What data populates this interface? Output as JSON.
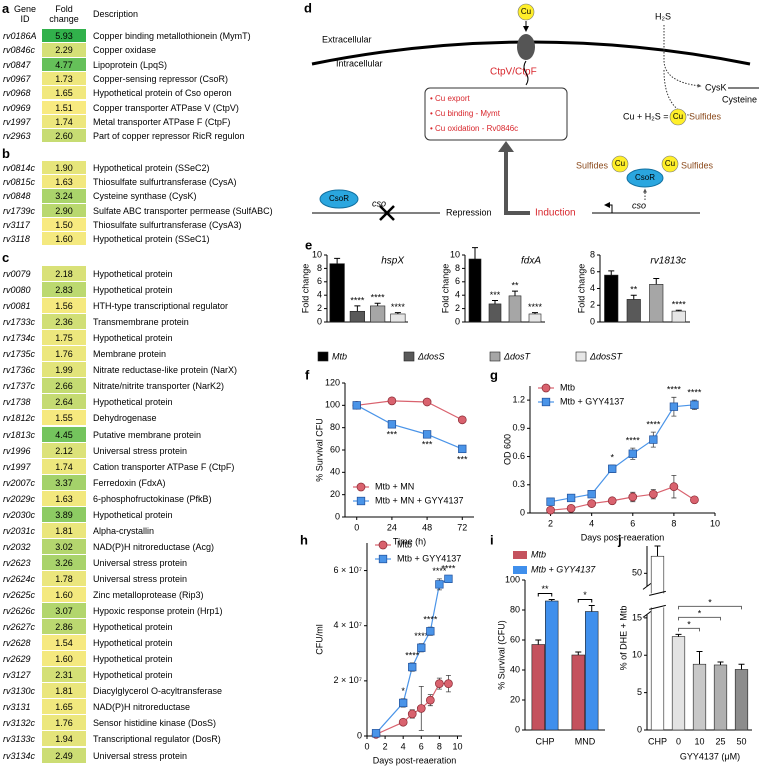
{
  "tables": [
    {
      "label": "a",
      "headers": [
        "Gene ID",
        "Fold change",
        "Description"
      ],
      "rows": [
        [
          "rv0186A",
          "5.93",
          "Copper binding metallothionein (MymT)"
        ],
        [
          "rv0846c",
          "2.29",
          "Copper oxidase"
        ],
        [
          "rv0847",
          "4.77",
          "Lipoprotein (LpqS)"
        ],
        [
          "rv0967",
          "1.73",
          "Copper-sensing repressor (CsoR)"
        ],
        [
          "rv0968",
          "1.65",
          "Hypothetical protein of Cso operon"
        ],
        [
          "rv0969",
          "1.51",
          "Copper transporter ATPase V (CtpV)"
        ],
        [
          "rv1997",
          "1.74",
          "Metal transporter ATPase F (CtpF)"
        ],
        [
          "rv2963",
          "2.60",
          "Part of copper repressor RicR regulon"
        ]
      ]
    },
    {
      "label": "b",
      "rows": [
        [
          "rv0814c",
          "1.90",
          "Hypothetical protein (SSeC2)"
        ],
        [
          "rv0815c",
          "1.63",
          "Thiosulfate sulfurtransferase (CysA)"
        ],
        [
          "rv0848",
          "3.24",
          "Cysteine synthase (CysK)"
        ],
        [
          "rv1739c",
          "2.90",
          "Sulfate ABC transporter permease (SulfABC)"
        ],
        [
          "rv3117",
          "1.50",
          "Thiosulfate sulfurtransferase (CysA3)"
        ],
        [
          "rv3118",
          "1.60",
          "Hypothetical protein (SSeC1)"
        ]
      ]
    },
    {
      "label": "c",
      "rows": [
        [
          "rv0079",
          "2.18",
          "Hypothetical protein"
        ],
        [
          "rv0080",
          "2.83",
          "Hypothetical protein"
        ],
        [
          "rv0081",
          "1.56",
          "HTH-type transcriptional regulator"
        ],
        [
          "rv1733c",
          "2.36",
          "Transmembrane protein"
        ],
        [
          "rv1734c",
          "1.75",
          "Hypothetical protein"
        ],
        [
          "rv1735c",
          "1.76",
          "Membrane protein"
        ],
        [
          "rv1736c",
          "1.99",
          "Nitrate reductase-like protein (NarX)"
        ],
        [
          "rv1737c",
          "2.66",
          "Nitrate/nitrite transporter (NarK2)"
        ],
        [
          "rv1738",
          "2.64",
          "Hypothetical protein"
        ],
        [
          "rv1812c",
          "1.55",
          "Dehydrogenase"
        ],
        [
          "rv1813c",
          "4.45",
          "Putative membrane protein"
        ],
        [
          "rv1996",
          "2.12",
          "Universal stress protein"
        ],
        [
          "rv1997",
          "1.74",
          "Cation transporter ATPase  F (CtpF)"
        ],
        [
          "rv2007c",
          "3.37",
          "Ferredoxin (FdxA)"
        ],
        [
          "rv2029c",
          "1.63",
          "6-phosphofructokinase (PfkB)"
        ],
        [
          "rv2030c",
          "3.89",
          "Hypothetical protein"
        ],
        [
          "rv2031c",
          "1.81",
          "Alpha-crystallin"
        ],
        [
          "rv2032",
          "3.02",
          "NAD(P)H nitroreductase (Acg)"
        ],
        [
          "rv2623",
          "3.26",
          "Universal stress protein"
        ],
        [
          "rv2624c",
          "1.78",
          "Universal stress protein"
        ],
        [
          "rv2625c",
          "1.60",
          "Zinc metalloprotease (Rip3)"
        ],
        [
          "rv2626c",
          "3.07",
          "Hypoxic response protein (Hrp1)"
        ],
        [
          "rv2627c",
          "2.86",
          "Hypothetical protein"
        ],
        [
          "rv2628",
          "1.54",
          "Hypothetical protein"
        ],
        [
          "rv2629",
          "1.60",
          "Hypothetical protein"
        ],
        [
          "rv3127",
          "2.31",
          "Hypothetical protein"
        ],
        [
          "rv3130c",
          "1.81",
          "Diacylglycerol O-acyltransferase"
        ],
        [
          "rv3131",
          "1.65",
          "NAD(P)H nitroreductase"
        ],
        [
          "rv3132c",
          "1.76",
          "Sensor histidine kinase (DosS)"
        ],
        [
          "rv3133c",
          "1.94",
          "Transcriptional regulator (DosR)"
        ],
        [
          "rv3134c",
          "2.49",
          "Universal stress protein"
        ]
      ]
    }
  ],
  "diagram": {
    "label": "d",
    "cu_top": "Cu",
    "h2s": "H₂S",
    "extracellular": "Extracellular",
    "intracellular": "Intracellular",
    "transporter": "CtpV/CtpF",
    "cysk": "CysK",
    "cysteine": "Cysteine",
    "reaction": "Cu + H₂S =",
    "reaction_cu": "Cu",
    "reaction_product": "Sulfides",
    "box": [
      "• Cu export",
      "• Cu binding - Mymt",
      "• Cu oxidation - Rv0846c"
    ],
    "repressor_left": "CsoR",
    "operon_left": "cso",
    "repression": "Repression",
    "induction": "Induction",
    "operon_right": "cso",
    "sulfides_left": "Sulfides",
    "cu_left": "Cu",
    "repressor_right": "CsoR",
    "cu_right": "Cu",
    "sulfides_right": "Sulfides"
  },
  "chart_data": [
    {
      "type": "bar",
      "panel": "e",
      "title": "hspX",
      "ylabel": "Fold change",
      "legend": "bottom",
      "categories": [
        "Mtb",
        "ΔdosS",
        "ΔdosT",
        "ΔdosST"
      ],
      "colors": [
        "#000000",
        "#595959",
        "#a6a6a6",
        "#e6e6e6"
      ],
      "values": [
        8.7,
        1.6,
        2.4,
        1.2
      ],
      "errors": [
        0.8,
        0.8,
        0.4,
        0.2
      ],
      "annotations": [
        null,
        "****",
        "****",
        "****"
      ],
      "ylim": [
        0,
        10
      ],
      "yticks": [
        0,
        2,
        4,
        6,
        8,
        10
      ]
    },
    {
      "type": "bar",
      "title": "fdxA",
      "ylabel": "Fold change",
      "colors": [
        "#000000",
        "#595959",
        "#a6a6a6",
        "#e6e6e6"
      ],
      "values": [
        9.4,
        2.7,
        3.9,
        1.2
      ],
      "errors": [
        1.7,
        0.5,
        0.7,
        0.2
      ],
      "annotations": [
        null,
        "***",
        "**",
        "****"
      ],
      "ylim": [
        0,
        10
      ],
      "yticks": [
        0,
        2,
        4,
        6,
        8,
        10
      ]
    },
    {
      "type": "bar",
      "title": "rv1813c",
      "ylabel": "Fold change",
      "colors": [
        "#000000",
        "#595959",
        "#a6a6a6",
        "#e6e6e6"
      ],
      "values": [
        5.6,
        2.7,
        4.5,
        1.3
      ],
      "errors": [
        0.5,
        0.5,
        0.7,
        0.1
      ],
      "annotations": [
        null,
        "**",
        null,
        "****"
      ],
      "ylim": [
        0,
        8
      ],
      "yticks": [
        0,
        2,
        4,
        6,
        8
      ]
    },
    {
      "type": "line",
      "panel": "f",
      "xlabel": "Time (h)",
      "ylabel": "% Survival CFU",
      "legend": "lower left",
      "x": [
        0,
        24,
        48,
        72
      ],
      "series": [
        {
          "name": "Mtb + MN",
          "color": "#d9626e",
          "marker": "circle",
          "values": [
            100,
            104,
            103,
            87
          ]
        },
        {
          "name": "Mtb + MN + GYY4137",
          "color": "#4a94e8",
          "marker": "square",
          "values": [
            100,
            83,
            74,
            61
          ],
          "annotations": [
            null,
            "***",
            "***",
            "***"
          ]
        }
      ],
      "xlim": [
        -8,
        80
      ],
      "xticks": [
        0,
        24,
        48,
        72
      ],
      "ylim": [
        0,
        120
      ],
      "yticks": [
        0,
        20,
        40,
        60,
        80,
        100,
        120
      ]
    },
    {
      "type": "line",
      "panel": "g",
      "xlabel": "Days post-reaeration",
      "ylabel": "OD 600",
      "legend": "upper left",
      "x": [
        2,
        3,
        4,
        5,
        6,
        7,
        8,
        9
      ],
      "series": [
        {
          "name": "Mtb",
          "color": "#d9626e",
          "marker": "circle",
          "values": [
            0.03,
            0.05,
            0.1,
            0.13,
            0.17,
            0.2,
            0.28,
            0.14
          ],
          "errors": [
            0.01,
            0.01,
            0.02,
            0.03,
            0.05,
            0.05,
            0.12,
            0.03
          ]
        },
        {
          "name": "Mtb + GYY4137",
          "color": "#4a94e8",
          "marker": "square",
          "values": [
            0.12,
            0.16,
            0.2,
            0.47,
            0.63,
            0.78,
            1.13,
            1.15
          ],
          "errors": [
            0.02,
            0.02,
            0.03,
            0.04,
            0.06,
            0.08,
            0.1,
            0.05
          ],
          "annotations": [
            null,
            null,
            null,
            "*",
            "****",
            "****",
            "****",
            "****"
          ]
        }
      ],
      "xlim": [
        1,
        10
      ],
      "xticks": [
        2,
        4,
        6,
        8,
        10
      ],
      "ylim": [
        0,
        1.35
      ],
      "yticks": [
        0,
        0.3,
        0.6,
        0.9,
        1.2
      ]
    },
    {
      "type": "line",
      "panel": "h",
      "xlabel": "Days post-reaeration",
      "ylabel": "CFU/ml",
      "legend": "upper left",
      "x": [
        1,
        4,
        5,
        6,
        7,
        8,
        9
      ],
      "series": [
        {
          "name": "Mtb",
          "color": "#d9626e",
          "marker": "circle",
          "values": [
            600000,
            5000000,
            8000000,
            10000000,
            13000000,
            19000000,
            19000000
          ],
          "errors": [
            200000,
            1000000,
            1500000,
            8000000,
            2000000,
            2000000,
            3000000
          ]
        },
        {
          "name": "Mtb + GYY4137",
          "color": "#4a94e8",
          "marker": "square",
          "values": [
            1000000,
            12000000,
            25000000,
            32000000,
            38000000,
            55000000,
            57000000
          ],
          "errors": [
            200000,
            1500000,
            1500000,
            1500000,
            1500000,
            2000000,
            1000000
          ],
          "annotations": [
            null,
            "*",
            "****",
            "****",
            "****",
            "****",
            "****"
          ]
        }
      ],
      "xlim": [
        0,
        10.5
      ],
      "xticks": [
        0,
        2,
        4,
        6,
        8,
        10
      ],
      "ylim": [
        0,
        70000000
      ],
      "yticks": [
        0,
        {
          "value": 20000000,
          "label": "2 × 10⁷"
        },
        {
          "value": 40000000,
          "label": "4 × 10⁷"
        },
        {
          "value": 60000000,
          "label": "6 × 10⁷"
        }
      ]
    },
    {
      "type": "bar",
      "panel": "i",
      "ylabel": "% Survival (CFU)",
      "legend": "upper left",
      "categories": [
        "CHP",
        "MND"
      ],
      "series": [
        {
          "name": "Mtb",
          "color": "#c4525e",
          "values": [
            57,
            50
          ],
          "errors": [
            3,
            2
          ]
        },
        {
          "name": "Mtb + GYY4137",
          "color": "#3f8fec",
          "values": [
            86,
            79
          ],
          "errors": [
            1,
            4
          ]
        }
      ],
      "annotations": [
        "**",
        "*"
      ],
      "ylim": [
        0,
        100
      ],
      "yticks": [
        0,
        20,
        40,
        60,
        80,
        100
      ]
    },
    {
      "type": "bar",
      "panel": "j",
      "ylabel": "% of DHE + Mtb",
      "xlabel": "GYY4137 (μM)",
      "categories": [
        "CHP",
        "0",
        "10",
        "25",
        "50"
      ],
      "colors": [
        "#ffffff",
        "#e3e3e3",
        "#c8c8c8",
        "#b0b0b0",
        "#8c8c8c"
      ],
      "values": [
        55,
        12.5,
        8.8,
        8.7,
        8.1
      ],
      "errors": [
        3,
        0.3,
        1.7,
        0.4,
        0.7
      ],
      "annotations": [
        "*",
        "*",
        "*"
      ],
      "ylim": [
        0,
        58
      ],
      "ybreak": [
        16,
        45
      ],
      "yticks": [
        0,
        5,
        10,
        15,
        50
      ]
    }
  ]
}
